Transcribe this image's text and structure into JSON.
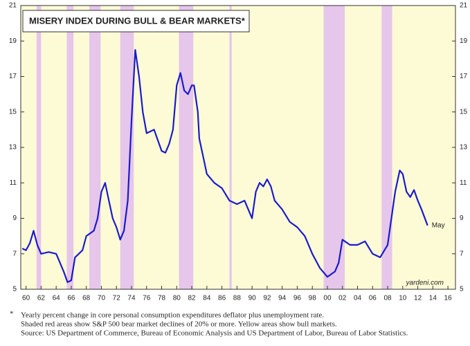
{
  "chart_data": {
    "type": "line",
    "title": "MISERY INDEX DURING BULL & BEAR MARKETS*",
    "x": [
      1959.5,
      1960,
      1960.5,
      1961,
      1961.5,
      1962,
      1963,
      1964,
      1964.5,
      1965,
      1965.5,
      1966,
      1966.5,
      1967,
      1967.5,
      1968,
      1969,
      1969.5,
      1970,
      1970.5,
      1971,
      1971.5,
      1972,
      1972.5,
      1973,
      1973.5,
      1974,
      1974.5,
      1975,
      1975.5,
      1976,
      1977,
      1978,
      1978.5,
      1979,
      1979.5,
      1980,
      1980.5,
      1981,
      1981.5,
      1982,
      1982.3,
      1982.8,
      1983,
      1983.5,
      1984,
      1985,
      1986,
      1987,
      1988,
      1989,
      1989.5,
      1990,
      1990.5,
      1991,
      1991.5,
      1992,
      1992.5,
      1993,
      1994,
      1995,
      1996,
      1997,
      1998,
      1999,
      2000,
      2001,
      2001.5,
      2002,
      2003,
      2004,
      2005,
      2006,
      2007,
      2008,
      2009,
      2009.6,
      2010,
      2010.5,
      2011,
      2011.5,
      2012,
      2012.5,
      2013.3
    ],
    "values": [
      7.3,
      7.2,
      7.6,
      8.3,
      7.5,
      7.0,
      7.1,
      7.0,
      6.5,
      6.0,
      5.4,
      5.5,
      6.8,
      7.0,
      7.2,
      8.0,
      8.3,
      9.0,
      10.5,
      11.0,
      10.0,
      9.0,
      8.5,
      7.8,
      8.3,
      10.0,
      14.5,
      18.5,
      17.0,
      15.0,
      13.8,
      14.0,
      12.8,
      12.7,
      13.2,
      14.0,
      16.5,
      17.2,
      16.2,
      16.0,
      16.5,
      16.5,
      15.0,
      13.5,
      12.5,
      11.5,
      11.0,
      10.7,
      10.0,
      9.8,
      10.0,
      9.5,
      9.0,
      10.5,
      11.0,
      10.8,
      11.2,
      10.8,
      10.0,
      9.5,
      8.8,
      8.5,
      8.0,
      7.0,
      6.2,
      5.7,
      6.0,
      6.5,
      7.8,
      7.5,
      7.5,
      7.7,
      7.0,
      6.8,
      7.5,
      10.5,
      11.7,
      11.5,
      10.5,
      10.2,
      10.6,
      10.0,
      9.5,
      8.6
    ],
    "color": "#1a1acc",
    "background_color": "#fdfbd6",
    "bear_color": "#e6c6ea",
    "bear_markets": [
      [
        1961.4,
        1962.0
      ],
      [
        1965.4,
        1966.3
      ],
      [
        1968.4,
        1969.9
      ],
      [
        1972.5,
        1974.3
      ],
      [
        1980.3,
        1982.2
      ],
      [
        1987.0,
        1987.3
      ],
      [
        1999.5,
        2002.3
      ],
      [
        2007.2,
        2008.6
      ]
    ],
    "xlim": [
      1959.3,
      2017
    ],
    "ylim": [
      5,
      21
    ],
    "yticks": [
      5,
      7,
      9,
      11,
      13,
      15,
      17,
      19,
      21
    ],
    "xticks": [
      {
        "value": 1960,
        "label": "60"
      },
      {
        "value": 1962,
        "label": "62"
      },
      {
        "value": 1964,
        "label": "64"
      },
      {
        "value": 1966,
        "label": "66"
      },
      {
        "value": 1968,
        "label": "68"
      },
      {
        "value": 1970,
        "label": "70"
      },
      {
        "value": 1972,
        "label": "72"
      },
      {
        "value": 1974,
        "label": "74"
      },
      {
        "value": 1976,
        "label": "76"
      },
      {
        "value": 1978,
        "label": "78"
      },
      {
        "value": 1980,
        "label": "80"
      },
      {
        "value": 1982,
        "label": "82"
      },
      {
        "value": 1984,
        "label": "84"
      },
      {
        "value": 1986,
        "label": "86"
      },
      {
        "value": 1988,
        "label": "88"
      },
      {
        "value": 1990,
        "label": "90"
      },
      {
        "value": 1992,
        "label": "92"
      },
      {
        "value": 1994,
        "label": "94"
      },
      {
        "value": 1996,
        "label": "96"
      },
      {
        "value": 1998,
        "label": "98"
      },
      {
        "value": 2000,
        "label": "00"
      },
      {
        "value": 2002,
        "label": "02"
      },
      {
        "value": 2004,
        "label": "04"
      },
      {
        "value": 2006,
        "label": "06"
      },
      {
        "value": 2008,
        "label": "08"
      },
      {
        "value": 2010,
        "label": "10"
      },
      {
        "value": 2012,
        "label": "12"
      },
      {
        "value": 2014,
        "label": "14"
      },
      {
        "value": 2016,
        "label": "16"
      }
    ],
    "end_label": "May",
    "source_mark": "yardeni.com",
    "note_marker": "*",
    "notes": [
      "Yearly percent change in core personal consumption expenditures deflator plus unemployment rate.",
      "Shaded red areas show S&P 500 bear market declines of 20% or more. Yellow areas show bull markets.",
      "Source: US Department of Commerce, Bureau of Economic Analysis and US Department of Labor, Bureau of Labor Statistics."
    ]
  }
}
